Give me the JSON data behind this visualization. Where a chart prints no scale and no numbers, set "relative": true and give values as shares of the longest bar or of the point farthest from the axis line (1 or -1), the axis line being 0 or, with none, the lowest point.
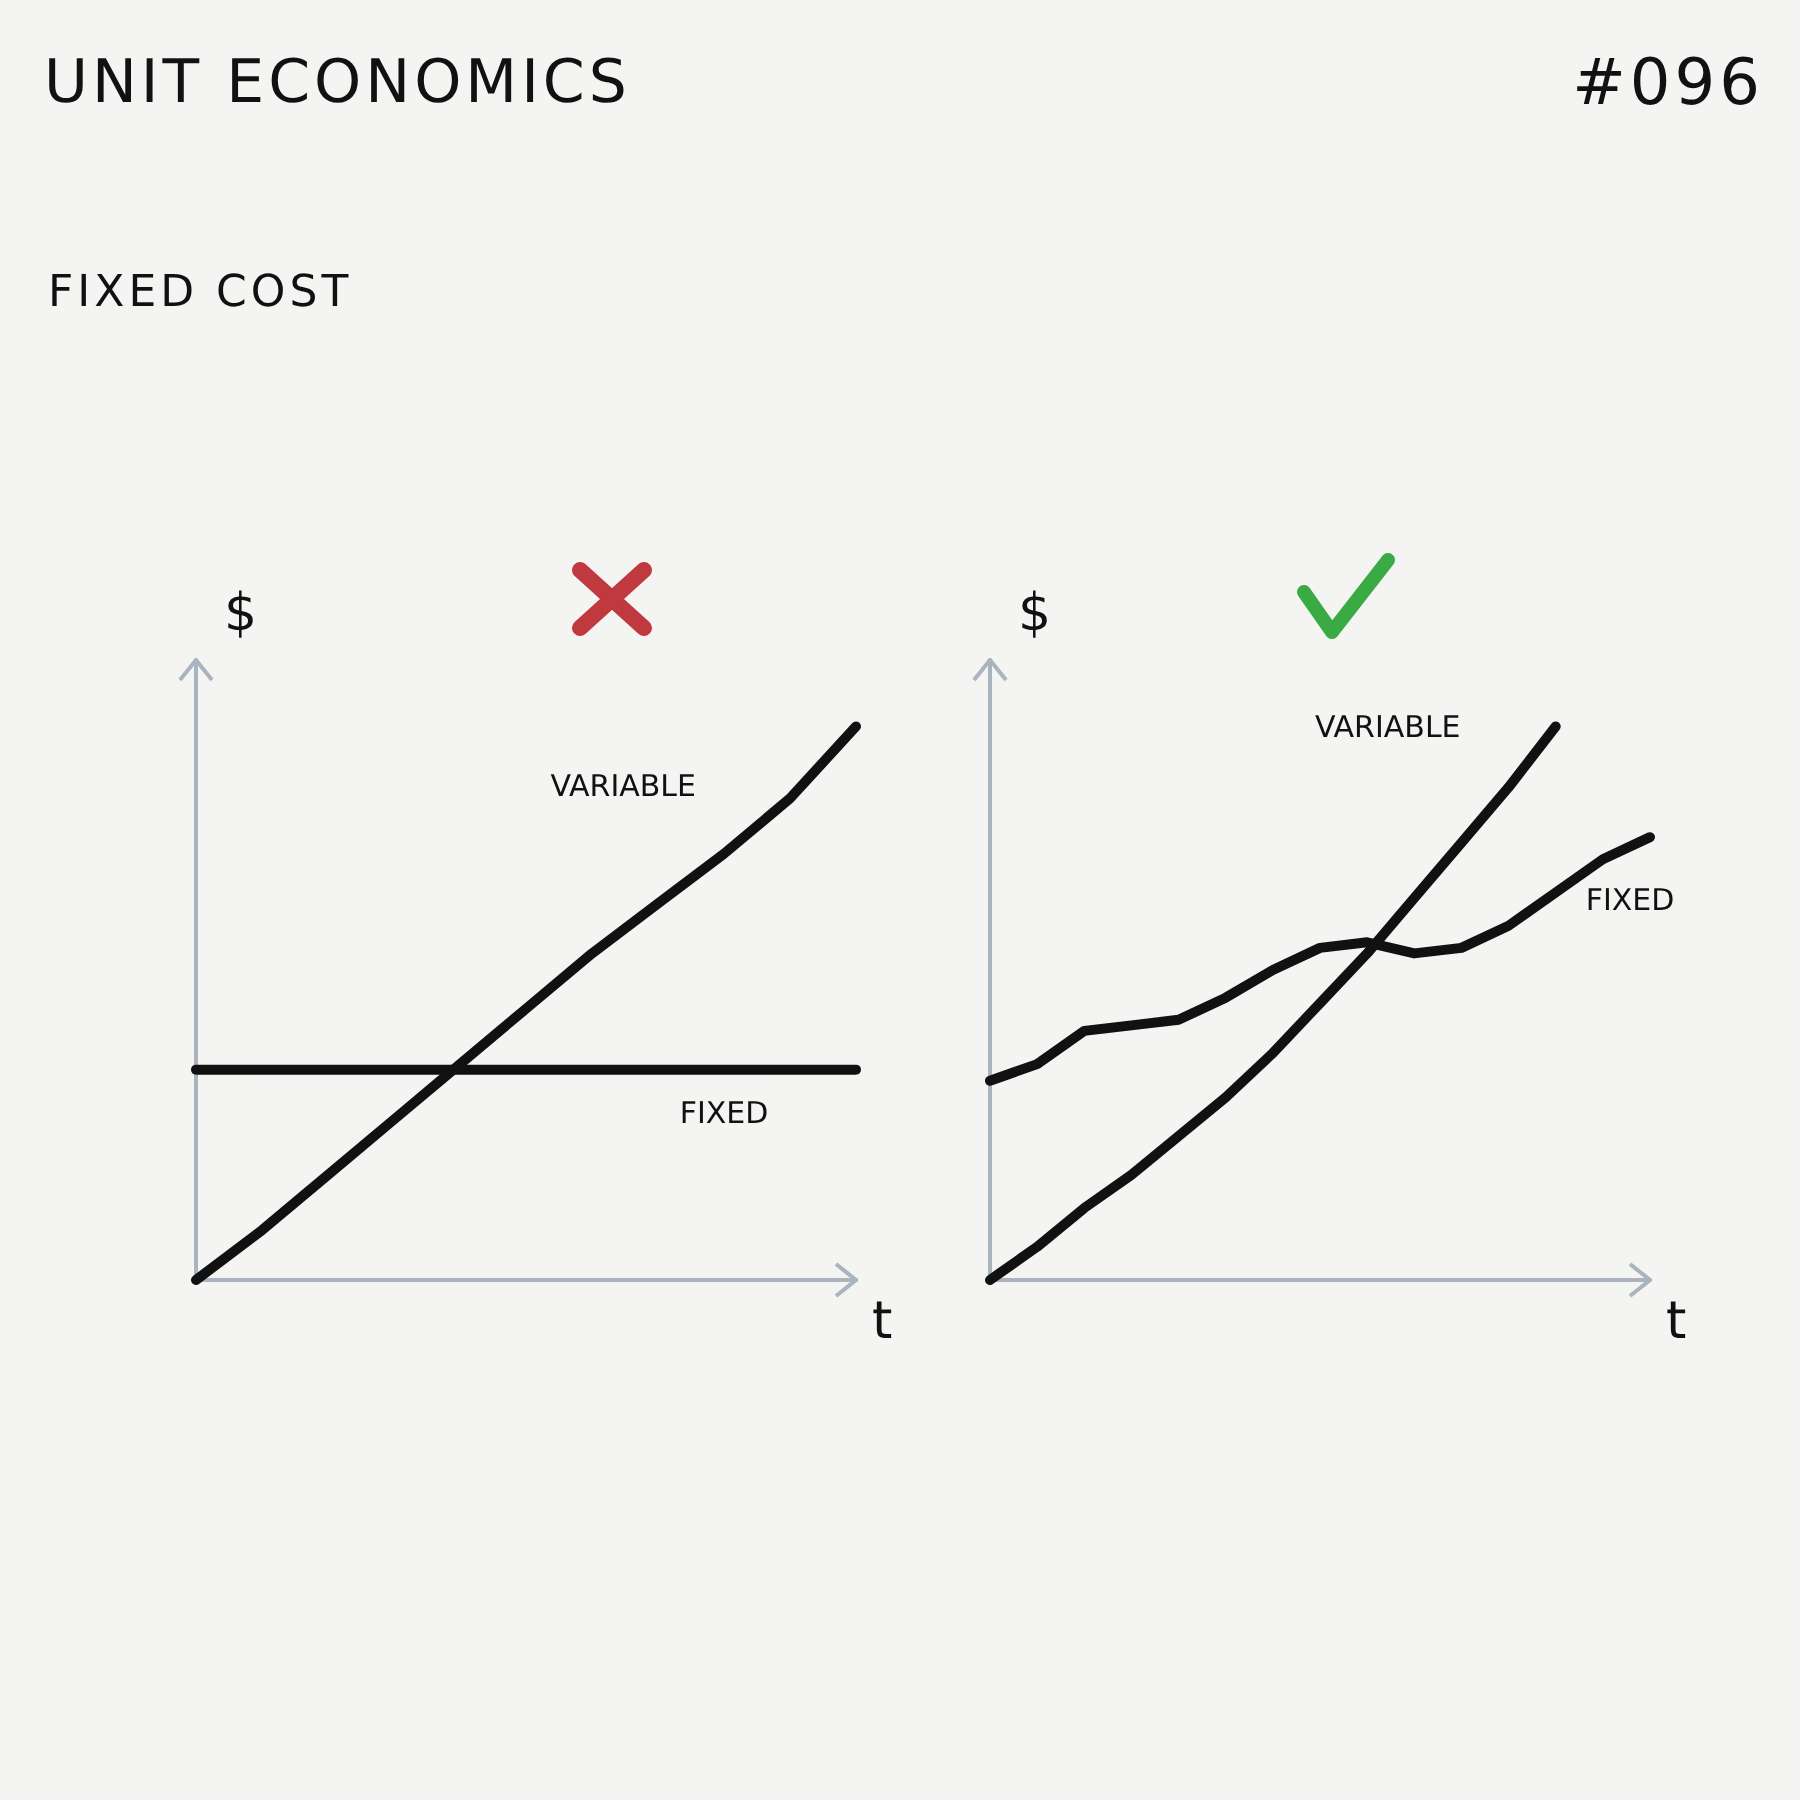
{
  "chart_data": [
    {
      "type": "line",
      "title": "UNIT ECONOMICS",
      "subtitle": "FIXED COST",
      "annotations": [
        "#096"
      ],
      "xlabel": "t",
      "ylabel": "$",
      "relative": true,
      "legend": false,
      "marker": "none",
      "line_style": "solid",
      "grid": false,
      "categories": [
        null,
        null,
        null,
        null,
        null,
        null,
        null,
        null,
        null,
        null,
        null
      ],
      "series": [
        {
          "name": "VARIABLE",
          "color": "#111111",
          "values": [
            0,
            0.09,
            0.19,
            0.29,
            0.39,
            0.49,
            0.59,
            0.68,
            0.77,
            0.87,
            1.0
          ]
        },
        {
          "name": "FIXED",
          "color": "#111111",
          "values": [
            0.38,
            0.38,
            0.38,
            0.38,
            0.38,
            0.38,
            0.38,
            0.38,
            0.38,
            0.38,
            0.38
          ]
        }
      ]
    },
    {
      "type": "line",
      "xlabel": "t",
      "ylabel": "$",
      "relative": true,
      "legend": false,
      "marker": "none",
      "line_style": "solid",
      "grid": false,
      "categories": [
        null,
        null,
        null,
        null,
        null,
        null,
        null,
        null,
        null,
        null,
        null,
        null,
        null,
        null,
        null
      ],
      "series": [
        {
          "name": "VARIABLE",
          "color": "#111111",
          "values": [
            0,
            0.06,
            0.13,
            0.19,
            0.26,
            0.33,
            0.41,
            0.5,
            0.59,
            0.69,
            0.79,
            0.89,
            1.0,
            null,
            null
          ]
        },
        {
          "name": "FIXED",
          "color": "#111111",
          "values": [
            0.36,
            0.39,
            0.45,
            0.46,
            0.47,
            0.51,
            0.56,
            0.6,
            0.61,
            0.59,
            0.6,
            0.64,
            0.7,
            0.76,
            0.8
          ]
        }
      ]
    }
  ]
}
